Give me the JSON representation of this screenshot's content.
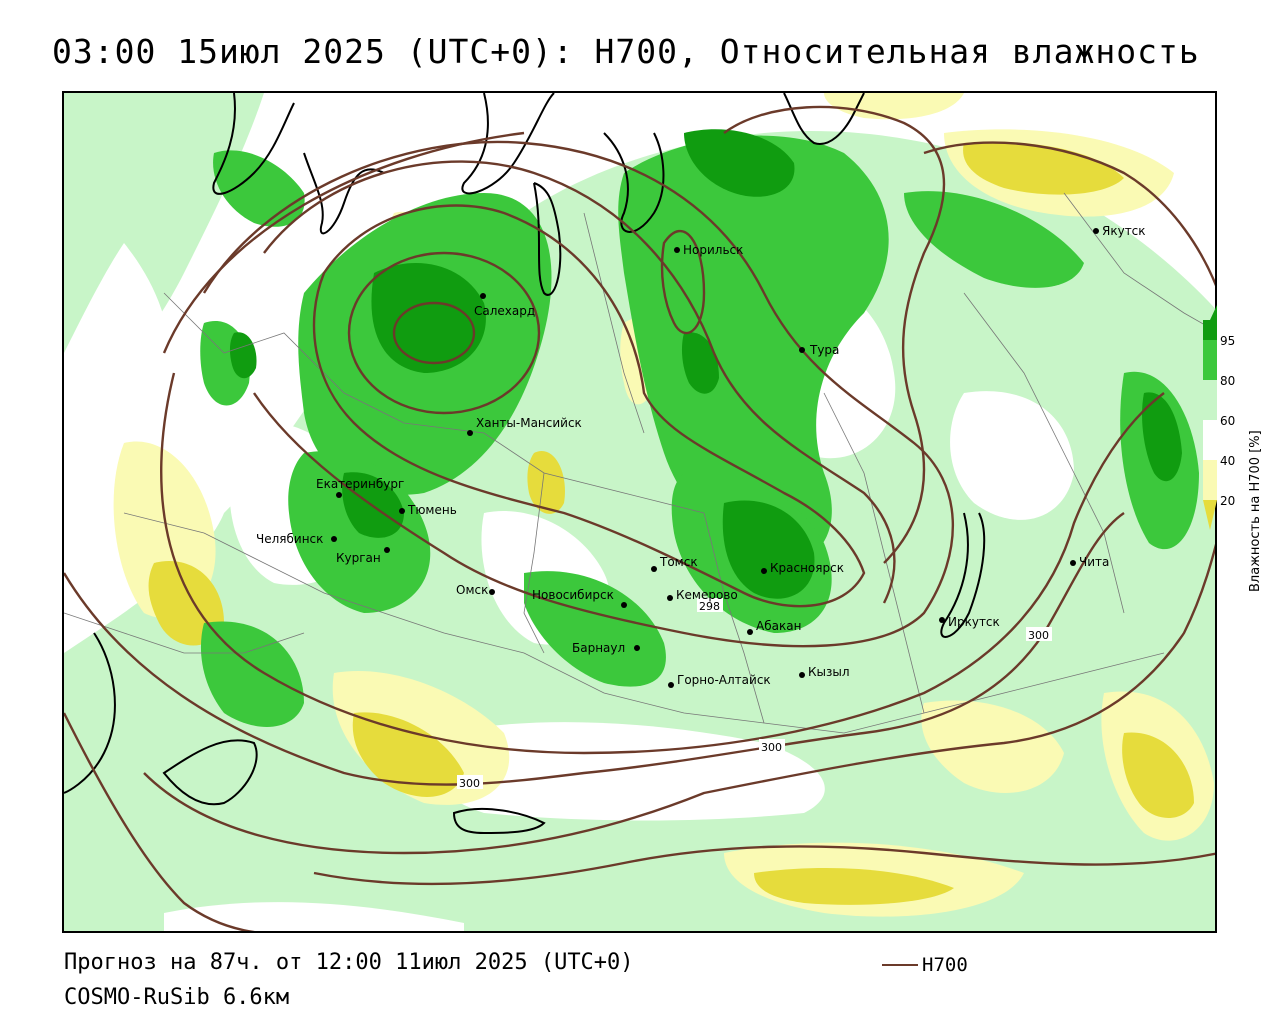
{
  "title": "03:00 15июл 2025 (UTC+0): H700, Относительная влажность",
  "forecast_line": "Прогноз на 87ч. от 12:00 11июл 2025 (UTC+0)",
  "model_line": "COSMO-RuSib 6.6км",
  "contour_legend_label": "H700",
  "colorbar": {
    "title": "Влажность на H700 [%]",
    "ticks": [
      "95",
      "80",
      "60",
      "40",
      "20"
    ],
    "colors": {
      "dark_green": "#109c10",
      "green": "#3cc83c",
      "light_green": "#c8f5c8",
      "white": "#ffffff",
      "light_yellow": "#fafab4",
      "yellow": "#e6dc3c"
    }
  },
  "contour_color": "#6b3a2a",
  "contour_labels": [
    "300",
    "300",
    "300",
    "298"
  ],
  "cities": [
    "Якутск",
    "Норильск",
    "Салехард",
    "Тура",
    "Ханты-Мансийск",
    "Екатеринбург",
    "Тюмень",
    "Челябинск",
    "Курган",
    "Омск",
    "Новосибирск",
    "Томск",
    "Кемерово",
    "Красноярск",
    "Абакан",
    "Барнаул",
    "Горно-Алтайск",
    "Кызыл",
    "Иркутск",
    "Чита"
  ]
}
